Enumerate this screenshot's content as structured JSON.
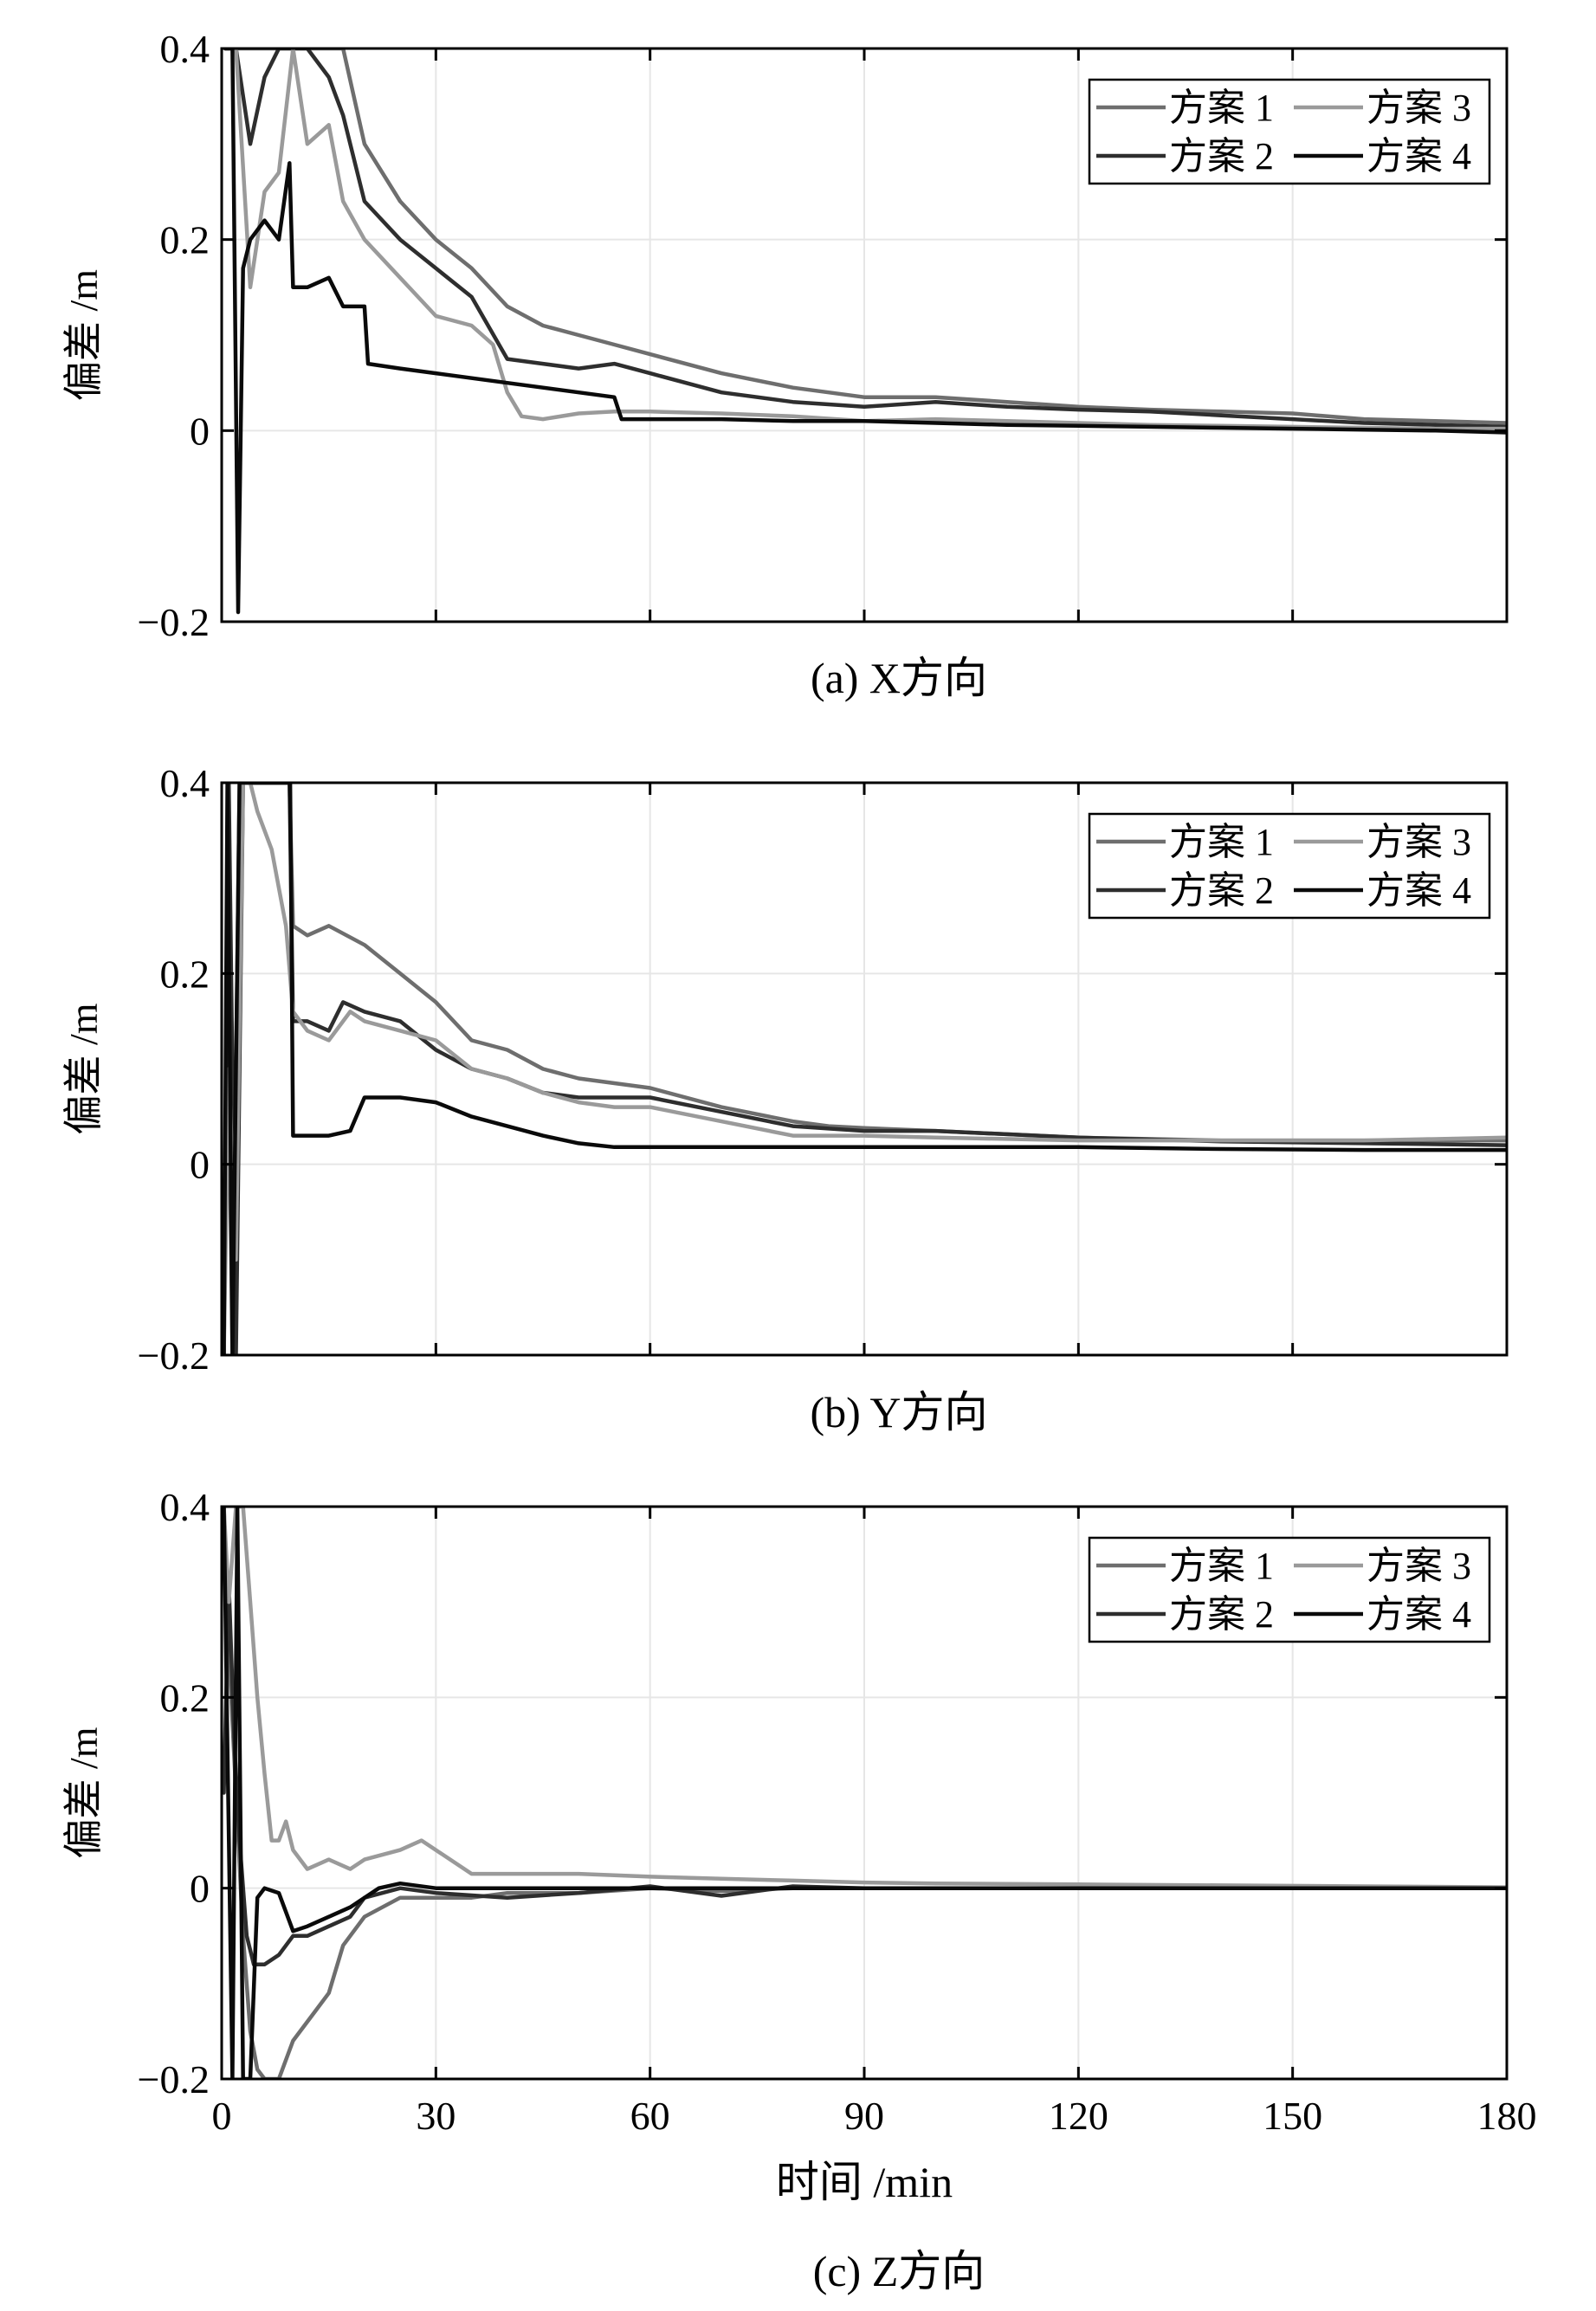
{
  "chart_data": [
    {
      "type": "line",
      "caption": "(a) X方向",
      "ylabel": "偏差 /m",
      "xlabel": "",
      "xlim": [
        0,
        180
      ],
      "ylim": [
        -0.2,
        0.4
      ],
      "xticks": [
        0,
        30,
        60,
        90,
        120,
        150,
        180
      ],
      "yticks": [
        -0.2,
        0,
        0.2,
        0.4
      ],
      "ytick_labels": [
        "−0.2",
        "0",
        "0.2",
        "0.4"
      ],
      "xtick_labels_shown": false,
      "grid": true,
      "legend_position": "top-right",
      "series": [
        {
          "name": "方案 1",
          "color": "#6e6e6e",
          "x": [
            0.5,
            2,
            5,
            8,
            10,
            12,
            15,
            17,
            20,
            25,
            30,
            35,
            40,
            45,
            50,
            55,
            60,
            70,
            80,
            90,
            100,
            110,
            120,
            130,
            140,
            150,
            160,
            170,
            180
          ],
          "y": [
            0.4,
            0.4,
            0.4,
            0.4,
            0.4,
            0.4,
            0.4,
            0.4,
            0.3,
            0.24,
            0.2,
            0.17,
            0.13,
            0.11,
            0.1,
            0.09,
            0.08,
            0.06,
            0.045,
            0.035,
            0.035,
            0.03,
            0.025,
            0.022,
            0.02,
            0.018,
            0.012,
            0.01,
            0.008
          ]
        },
        {
          "name": "方案 2",
          "color": "#2e2e2e",
          "x": [
            0.5,
            2,
            4,
            6,
            8,
            10,
            12,
            15,
            17,
            20,
            25,
            30,
            35,
            40,
            45,
            50,
            55,
            60,
            70,
            80,
            90,
            100,
            110,
            120,
            130,
            140,
            150,
            160,
            170,
            180
          ],
          "y": [
            0.4,
            0.4,
            0.3,
            0.37,
            0.4,
            0.4,
            0.4,
            0.37,
            0.33,
            0.24,
            0.2,
            0.17,
            0.14,
            0.075,
            0.07,
            0.065,
            0.07,
            0.06,
            0.04,
            0.03,
            0.025,
            0.03,
            0.025,
            0.022,
            0.02,
            0.016,
            0.012,
            0.008,
            0.006,
            0.004
          ]
        },
        {
          "name": "方案 3",
          "color": "#9a9a9a",
          "x": [
            0.5,
            2,
            4,
            6,
            8,
            10,
            12,
            15,
            17,
            20,
            25,
            30,
            35,
            38,
            40,
            42,
            45,
            50,
            55,
            60,
            70,
            80,
            90,
            100,
            110,
            120,
            130,
            140,
            150,
            160,
            170,
            180
          ],
          "y": [
            0.4,
            0.4,
            0.15,
            0.25,
            0.27,
            0.4,
            0.3,
            0.32,
            0.24,
            0.2,
            0.16,
            0.12,
            0.11,
            0.09,
            0.04,
            0.015,
            0.012,
            0.018,
            0.02,
            0.02,
            0.018,
            0.015,
            0.01,
            0.012,
            0.01,
            0.008,
            0.006,
            0.005,
            0.004,
            0.003,
            0.002,
            0.002
          ]
        },
        {
          "name": "方案 4",
          "color": "#0a0a0a",
          "x": [
            0.5,
            1.5,
            2.3,
            3,
            4,
            6,
            8,
            9.5,
            10,
            12,
            15,
            17,
            20,
            20.5,
            25,
            30,
            40,
            50,
            55,
            56,
            60,
            70,
            80,
            90,
            100,
            110,
            120,
            130,
            140,
            150,
            160,
            170,
            180
          ],
          "y": [
            0.4,
            0.4,
            -0.19,
            0.17,
            0.2,
            0.22,
            0.2,
            0.28,
            0.15,
            0.15,
            0.16,
            0.13,
            0.13,
            0.07,
            0.065,
            0.06,
            0.05,
            0.04,
            0.035,
            0.012,
            0.012,
            0.012,
            0.01,
            0.01,
            0.008,
            0.006,
            0.005,
            0.004,
            0.003,
            0.002,
            0.001,
            0.0,
            -0.002
          ]
        }
      ]
    },
    {
      "type": "line",
      "caption": "(b) Y方向",
      "ylabel": "偏差 /m",
      "xlabel": "",
      "xlim": [
        0,
        180
      ],
      "ylim": [
        -0.2,
        0.4
      ],
      "xticks": [
        0,
        30,
        60,
        90,
        120,
        150,
        180
      ],
      "yticks": [
        -0.2,
        0,
        0.2,
        0.4
      ],
      "ytick_labels": [
        "−0.2",
        "0",
        "0.2",
        "0.4"
      ],
      "xtick_labels_shown": false,
      "grid": true,
      "legend_position": "top-right",
      "series": [
        {
          "name": "方案 1",
          "color": "#6e6e6e",
          "x": [
            0.3,
            0.8,
            1.5,
            2.5,
            3,
            5,
            8,
            9.5,
            10,
            12,
            15,
            20,
            25,
            30,
            35,
            40,
            45,
            50,
            55,
            60,
            70,
            80,
            85,
            90,
            100,
            120,
            140,
            160,
            180
          ],
          "y": [
            -0.2,
            0.2,
            -0.2,
            0.4,
            0.4,
            0.4,
            0.4,
            0.4,
            0.25,
            0.24,
            0.25,
            0.23,
            0.2,
            0.17,
            0.13,
            0.12,
            0.1,
            0.09,
            0.085,
            0.08,
            0.06,
            0.045,
            0.04,
            0.038,
            0.035,
            0.028,
            0.025,
            0.025,
            0.025
          ]
        },
        {
          "name": "方案 2",
          "color": "#2e2e2e",
          "x": [
            0.3,
            1,
            2,
            3,
            5,
            8,
            9.5,
            10,
            12,
            15,
            17,
            20,
            25,
            30,
            35,
            40,
            45,
            50,
            55,
            60,
            70,
            80,
            90,
            100,
            120,
            140,
            160,
            180
          ],
          "y": [
            -0.2,
            0.4,
            -0.2,
            0.4,
            0.4,
            0.4,
            0.4,
            0.15,
            0.15,
            0.14,
            0.17,
            0.16,
            0.15,
            0.12,
            0.1,
            0.09,
            0.075,
            0.07,
            0.07,
            0.07,
            0.055,
            0.04,
            0.035,
            0.035,
            0.028,
            0.024,
            0.022,
            0.02
          ]
        },
        {
          "name": "方案 3",
          "color": "#9a9a9a",
          "x": [
            0.3,
            1,
            2,
            3,
            4,
            5,
            7,
            9,
            10,
            12,
            15,
            18,
            20,
            25,
            30,
            35,
            40,
            45,
            50,
            55,
            60,
            70,
            80,
            90,
            100,
            120,
            140,
            160,
            180
          ],
          "y": [
            -0.2,
            0.1,
            -0.1,
            0.4,
            0.4,
            0.37,
            0.33,
            0.25,
            0.16,
            0.14,
            0.13,
            0.16,
            0.15,
            0.14,
            0.13,
            0.1,
            0.09,
            0.075,
            0.065,
            0.06,
            0.06,
            0.045,
            0.03,
            0.03,
            0.028,
            0.025,
            0.025,
            0.025,
            0.028
          ]
        },
        {
          "name": "方案 4",
          "color": "#0a0a0a",
          "x": [
            0.3,
            0.8,
            1.5,
            2.5,
            3,
            6,
            9,
            9.6,
            10,
            12,
            15,
            18,
            20,
            25,
            30,
            35,
            40,
            45,
            50,
            55,
            60,
            70,
            80,
            90,
            100,
            120,
            140,
            160,
            180
          ],
          "y": [
            -0.2,
            0.4,
            -0.2,
            0.4,
            0.4,
            0.4,
            0.4,
            0.4,
            0.03,
            0.03,
            0.03,
            0.035,
            0.07,
            0.07,
            0.065,
            0.05,
            0.04,
            0.03,
            0.022,
            0.018,
            0.018,
            0.018,
            0.018,
            0.018,
            0.018,
            0.018,
            0.016,
            0.015,
            0.015
          ]
        }
      ]
    },
    {
      "type": "line",
      "caption": "(c) Z方向",
      "ylabel": "偏差 /m",
      "xlabel": "时间 /min",
      "xlim": [
        0,
        180
      ],
      "ylim": [
        -0.2,
        0.4
      ],
      "xticks": [
        0,
        30,
        60,
        90,
        120,
        150,
        180
      ],
      "yticks": [
        -0.2,
        0,
        0.2,
        0.4
      ],
      "ytick_labels": [
        "−0.2",
        "0",
        "0.2",
        "0.4"
      ],
      "xtick_labels_shown": true,
      "grid": true,
      "legend_position": "top-right",
      "series": [
        {
          "name": "方案 1",
          "color": "#6e6e6e",
          "x": [
            0.3,
            1,
            2,
            3,
            4,
            5,
            6,
            8,
            10,
            13,
            15,
            17,
            20,
            25,
            30,
            35,
            40,
            50,
            60,
            70,
            80,
            90,
            100,
            120,
            140,
            160,
            180
          ],
          "y": [
            0.4,
            0.25,
            0.1,
            -0.05,
            -0.15,
            -0.19,
            -0.2,
            -0.2,
            -0.16,
            -0.13,
            -0.11,
            -0.06,
            -0.03,
            -0.01,
            -0.01,
            -0.01,
            -0.005,
            -0.005,
            0.0,
            -0.003,
            0.0,
            0.0,
            0.0,
            0.0,
            0.0,
            0.0,
            0.0
          ]
        },
        {
          "name": "方案 2",
          "color": "#2e2e2e",
          "x": [
            0.3,
            1,
            1.8,
            2.5,
            3.5,
            4.5,
            6,
            8,
            10,
            12,
            15,
            18,
            20,
            25,
            30,
            40,
            50,
            60,
            70,
            80,
            90,
            100,
            120,
            140,
            160,
            180
          ],
          "y": [
            0.1,
            0.32,
            0.15,
            0.05,
            -0.05,
            -0.08,
            -0.08,
            -0.07,
            -0.05,
            -0.05,
            -0.04,
            -0.03,
            -0.01,
            0.0,
            -0.005,
            -0.01,
            -0.005,
            0.002,
            -0.008,
            0.002,
            0.0,
            0.0,
            0.0,
            0.0,
            0.0,
            0.0
          ]
        },
        {
          "name": "方案 3",
          "color": "#9a9a9a",
          "x": [
            0.3,
            1,
            2,
            3,
            4,
            5,
            6,
            7,
            8,
            9,
            10,
            12,
            15,
            18,
            20,
            25,
            28,
            30,
            35,
            40,
            50,
            60,
            70,
            80,
            90,
            100,
            120,
            140,
            160,
            180
          ],
          "y": [
            0.4,
            0.3,
            0.4,
            0.4,
            0.3,
            0.2,
            0.12,
            0.05,
            0.05,
            0.07,
            0.04,
            0.02,
            0.03,
            0.02,
            0.03,
            0.04,
            0.05,
            0.04,
            0.015,
            0.015,
            0.015,
            0.012,
            0.01,
            0.008,
            0.006,
            0.005,
            0.004,
            0.003,
            0.002,
            0.001
          ]
        },
        {
          "name": "方案 4",
          "color": "#0a0a0a",
          "x": [
            0.3,
            1.5,
            2.2,
            3,
            4,
            5,
            6,
            8,
            10,
            12,
            15,
            18,
            20,
            22,
            25,
            30,
            40,
            50,
            60,
            70,
            80,
            90,
            100,
            120,
            140,
            160,
            180
          ],
          "y": [
            0.4,
            -0.2,
            0.4,
            -0.2,
            -0.2,
            -0.01,
            0.0,
            -0.005,
            -0.045,
            -0.04,
            -0.03,
            -0.02,
            -0.01,
            0.0,
            0.005,
            0.0,
            0.0,
            0.0,
            0.0,
            0.0,
            0.0,
            0.0,
            0.0,
            0.0,
            0.0,
            0.0,
            0.0
          ]
        }
      ]
    }
  ]
}
